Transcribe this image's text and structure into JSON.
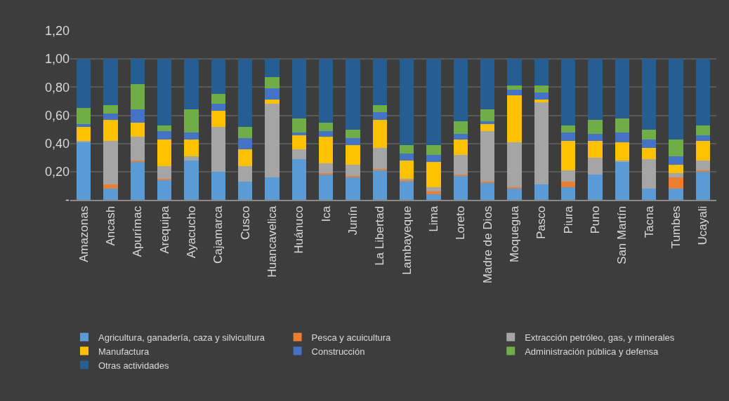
{
  "chart_data": {
    "type": "bar",
    "stacked": true,
    "grid": "y",
    "legend": "bottom",
    "categories": [
      "Amazonas",
      "Ancash",
      "Apurímac",
      "Arequipa",
      "Ayacucho",
      "Cajamarca",
      "Cusco",
      "Huancavelica",
      "Huánuco",
      "Ica",
      "Junín",
      "La Libertad",
      "Lambayeque",
      "Lima",
      "Loreto",
      "Madre de Dios",
      "Moquegua",
      "Pasco",
      "Piura",
      "Puno",
      "San Martín",
      "Tacna",
      "Tumbes",
      "Ucayali"
    ],
    "ylim": [
      0,
      1.2
    ],
    "yticks": [
      {
        "value": 0,
        "label": "-"
      },
      {
        "value": 0.2,
        "label": "0,20"
      },
      {
        "value": 0.4,
        "label": "0,40"
      },
      {
        "value": 0.6,
        "label": "0,60"
      },
      {
        "value": 0.8,
        "label": "0,80"
      },
      {
        "value": 1,
        "label": "1,00"
      },
      {
        "value": 1.2,
        "label": "1,20"
      }
    ],
    "series": [
      {
        "name": "Agricultura, ganadería, caza y silvicultura",
        "color": "#5b9bd5",
        "values": [
          0.41,
          0.08,
          0.27,
          0.14,
          0.28,
          0.2,
          0.13,
          0.16,
          0.29,
          0.18,
          0.16,
          0.21,
          0.13,
          0.04,
          0.17,
          0.12,
          0.08,
          0.11,
          0.09,
          0.18,
          0.27,
          0.08,
          0.08,
          0.2
        ]
      },
      {
        "name": "Pesca y acuicultura",
        "color": "#ed7d31",
        "values": [
          0,
          0.03,
          0.01,
          0.01,
          0,
          0,
          0,
          0,
          0,
          0.01,
          0.01,
          0.01,
          0.01,
          0.02,
          0.01,
          0.01,
          0.01,
          0,
          0.04,
          0,
          0,
          0,
          0.08,
          0.01
        ]
      },
      {
        "name": "Extracción petróleo, gas, y minerales",
        "color": "#a5a5a5",
        "values": [
          0.01,
          0.31,
          0.17,
          0.09,
          0.03,
          0.32,
          0.11,
          0.52,
          0.07,
          0.07,
          0.08,
          0.15,
          0.01,
          0.03,
          0.14,
          0.36,
          0.32,
          0.58,
          0.08,
          0.12,
          0.01,
          0.21,
          0.03,
          0.07
        ]
      },
      {
        "name": "Manufactura",
        "color": "#ffc000",
        "values": [
          0.1,
          0.15,
          0.1,
          0.19,
          0.12,
          0.11,
          0.12,
          0.03,
          0.1,
          0.19,
          0.14,
          0.2,
          0.13,
          0.18,
          0.11,
          0.05,
          0.33,
          0.02,
          0.21,
          0.12,
          0.13,
          0.08,
          0.06,
          0.14
        ]
      },
      {
        "name": "Construcción",
        "color": "#4472c4",
        "values": [
          0.02,
          0.04,
          0.09,
          0.06,
          0.05,
          0.05,
          0.08,
          0.08,
          0.02,
          0.04,
          0.05,
          0.05,
          0.05,
          0.05,
          0.04,
          0.02,
          0.04,
          0.05,
          0.06,
          0.05,
          0.07,
          0.06,
          0.06,
          0.04
        ]
      },
      {
        "name": "Administración pública y defensa",
        "color": "#70ad47",
        "values": [
          0.11,
          0.06,
          0.18,
          0.04,
          0.16,
          0.07,
          0.08,
          0.08,
          0.1,
          0.06,
          0.06,
          0.05,
          0.06,
          0.07,
          0.09,
          0.08,
          0.03,
          0.05,
          0.05,
          0.1,
          0.1,
          0.07,
          0.12,
          0.07
        ]
      },
      {
        "name": "Otras actividades",
        "color": "#255e91",
        "values": [
          0.35,
          0.33,
          0.18,
          0.47,
          0.36,
          0.25,
          0.48,
          0.13,
          0.42,
          0.45,
          0.5,
          0.33,
          0.61,
          0.61,
          0.44,
          0.36,
          0.19,
          0.19,
          0.47,
          0.43,
          0.42,
          0.5,
          0.57,
          0.47
        ]
      }
    ]
  }
}
